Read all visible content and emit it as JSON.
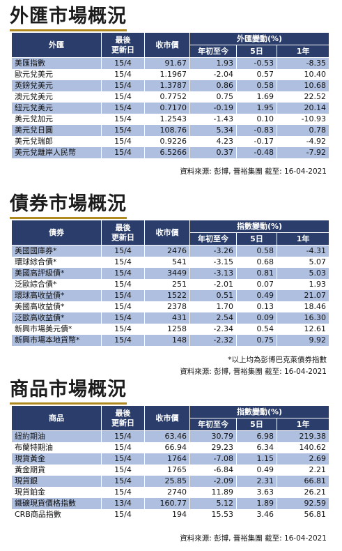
{
  "fx": {
    "title": "外匯市場概況",
    "headers": {
      "name": "外匯",
      "updated": "最後\n更新日",
      "close": "收市價",
      "group": "外匯變動(%)",
      "ytd": "年初至今",
      "d5": "5日",
      "y1": "1年"
    },
    "rows": [
      [
        "美匯指數",
        "15/4",
        "91.67",
        "1.93",
        "-0.53",
        "-8.35"
      ],
      [
        "歐元兌美元",
        "15/4",
        "1.1967",
        "-2.04",
        "0.57",
        "10.40"
      ],
      [
        "英鎊兌美元",
        "15/4",
        "1.3787",
        "0.86",
        "0.58",
        "10.68"
      ],
      [
        "澳元兌美元",
        "15/4",
        "0.7752",
        "0.75",
        "1.69",
        "22.52"
      ],
      [
        "紐元兌美元",
        "15/4",
        "0.7170",
        "-0.19",
        "1.95",
        "20.14"
      ],
      [
        "美元兌加元",
        "15/4",
        "1.2543",
        "-1.43",
        "0.10",
        "-10.93"
      ],
      [
        "美元兌日圓",
        "15/4",
        "108.76",
        "5.34",
        "-0.83",
        "0.78"
      ],
      [
        "美元兌瑞郎",
        "15/4",
        "0.9226",
        "4.23",
        "-0.17",
        "-4.92"
      ],
      [
        "美元兌離岸人民幣",
        "15/4",
        "6.5266",
        "0.37",
        "-0.48",
        "-7.92"
      ]
    ],
    "source": "資料來源: 彭博, 晋裕集團 截至: 16-04-2021"
  },
  "bond": {
    "title": "債券市場概況",
    "headers": {
      "name": "債券",
      "updated": "最後\n更新日",
      "close": "收市價",
      "group": "指數變動(%)",
      "ytd": "年初至今",
      "d5": "5日",
      "y1": "1年"
    },
    "rows": [
      [
        "美國國庫券*",
        "15/4",
        "2476",
        "-3.26",
        "0.58",
        "-4.31"
      ],
      [
        "環球綜合債*",
        "15/4",
        "541",
        "-3.15",
        "0.68",
        "5.07"
      ],
      [
        "美國高評級債*",
        "15/4",
        "3449",
        "-3.13",
        "0.81",
        "5.03"
      ],
      [
        "泛歐綜合債*",
        "15/4",
        "251",
        "-2.01",
        "0.07",
        "1.93"
      ],
      [
        "環球高收益債*",
        "15/4",
        "1522",
        "0.51",
        "0.49",
        "21.07"
      ],
      [
        "美國高收益債*",
        "15/4",
        "2378",
        "1.70",
        "0.13",
        "18.46"
      ],
      [
        "泛歐高收益債*",
        "15/4",
        "431",
        "2.54",
        "0.09",
        "16.30"
      ],
      [
        "新興市場美元債*",
        "15/4",
        "1258",
        "-2.34",
        "0.54",
        "12.61"
      ],
      [
        "新興市場本地貨幣*",
        "15/4",
        "148",
        "-2.32",
        "0.75",
        "9.92"
      ]
    ],
    "note": "*以上均為彭博巴克萊債券指數",
    "source": "資料來源: 彭博, 晋裕集團 截至: 16-04-2021"
  },
  "commodity": {
    "title": "商品市場概況",
    "headers": {
      "name": "商品",
      "updated": "最後\n更新日",
      "close": "收市價",
      "group": "指數變動(%)",
      "ytd": "年初至今",
      "d5": "5日",
      "y1": "1年"
    },
    "rows": [
      [
        "紐約期油",
        "15/4",
        "63.46",
        "30.79",
        "6.98",
        "219.38"
      ],
      [
        "布蘭特期油",
        "15/4",
        "66.94",
        "29.23",
        "6.34",
        "140.62"
      ],
      [
        "現貨黃金",
        "15/4",
        "1764",
        "-7.08",
        "1.15",
        "2.69"
      ],
      [
        "黃金期貨",
        "15/4",
        "1765",
        "-6.84",
        "0.49",
        "2.21"
      ],
      [
        "現貨銀",
        "15/4",
        "25.85",
        "-2.09",
        "2.31",
        "66.81"
      ],
      [
        "現貨鉑金",
        "15/4",
        "2740",
        "11.89",
        "3.63",
        "26.21"
      ],
      [
        "鐵礦現貨價格指數",
        "13/4",
        "160.77",
        "5.12",
        "1.89",
        "92.59"
      ],
      [
        "CRB商品指數",
        "15/4",
        "194",
        "15.53",
        "3.46",
        "56.81"
      ]
    ],
    "source": "資料來源: 彭博, 晋裕集團 截至: 16-04-2021"
  },
  "colors": {
    "header_bg": "#2b3e6b",
    "stripe": "#aebfe0",
    "title_underline": "#b08a1e"
  }
}
